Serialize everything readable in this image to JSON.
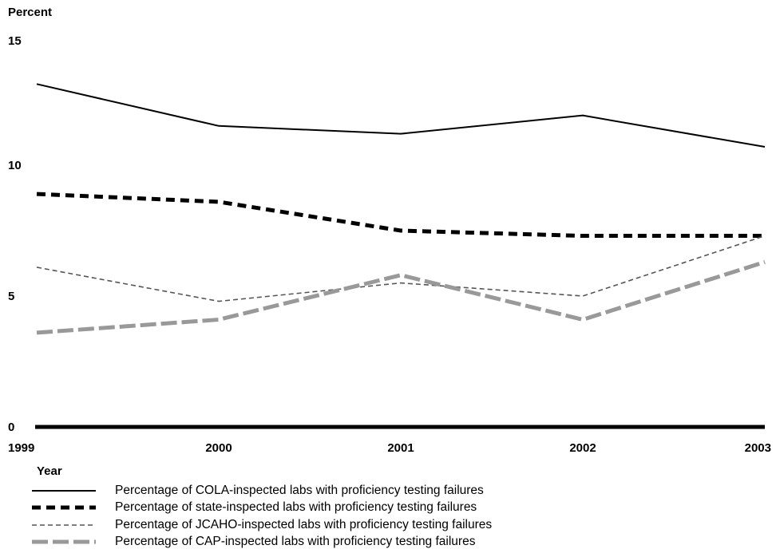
{
  "chart_data": {
    "type": "line",
    "ylabel": "Percent",
    "xlabel": "Year",
    "x": [
      "1999",
      "2000",
      "2001",
      "2002",
      "2003"
    ],
    "ylim": [
      0,
      15
    ],
    "yticks": [
      "0",
      "5",
      "10",
      "15"
    ],
    "legend_position": "bottom",
    "series": [
      {
        "name": "Percentage of COLA-inspected labs with proficiency testing failures",
        "values": [
          13.1,
          11.5,
          11.2,
          11.9,
          10.7
        ],
        "color": "#000000",
        "style": "solid-thin"
      },
      {
        "name": "Percentage of state-inspected labs with proficiency testing failures",
        "values": [
          8.9,
          8.6,
          7.5,
          7.3,
          7.3
        ],
        "color": "#000000",
        "style": "dashed-thick"
      },
      {
        "name": "Percentage of JCAHO-inspected labs with proficiency testing failures",
        "values": [
          6.1,
          4.8,
          5.5,
          5.0,
          7.3
        ],
        "color": "#555555",
        "style": "dashed-thin"
      },
      {
        "name": "Percentage of CAP-inspected labs with proficiency testing failures",
        "values": [
          3.6,
          4.1,
          5.8,
          4.1,
          6.3
        ],
        "color": "#999999",
        "style": "dashed-thick-gray"
      }
    ]
  }
}
